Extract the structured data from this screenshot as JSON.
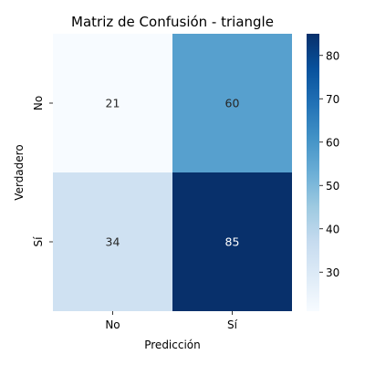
{
  "chart_data": {
    "type": "heatmap",
    "title": "Matriz de Confusión - triangle",
    "xlabel": "Predicción",
    "ylabel": "Verdadero",
    "x_categories": [
      "No",
      "Sí"
    ],
    "y_categories": [
      "No",
      "Sí"
    ],
    "values": [
      [
        21,
        60
      ],
      [
        34,
        85
      ]
    ],
    "colormap": "Blues",
    "colorbar": {
      "range": [
        21,
        85
      ],
      "ticks": [
        30,
        40,
        50,
        60,
        70,
        80
      ]
    },
    "colors": {
      "r0c0": "#f7fbff",
      "r0c1": "#57a0ce",
      "r1c0": "#cfe1f2",
      "r1c1": "#08306b"
    },
    "label_colors": {
      "light": "#262626",
      "dark": "#ffffff"
    }
  }
}
